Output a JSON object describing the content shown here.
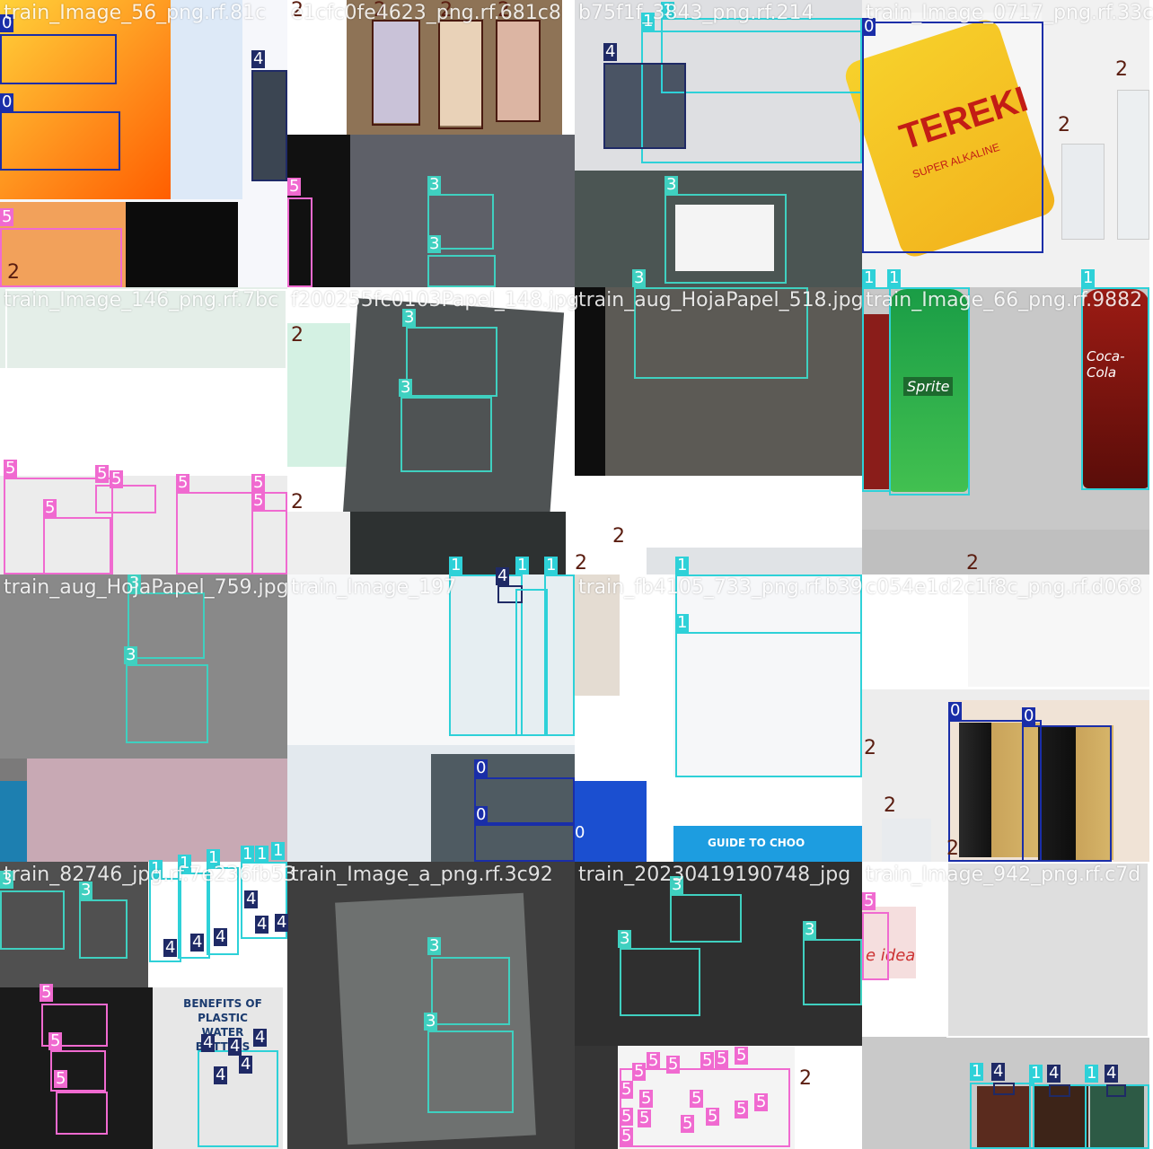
{
  "mosaic": {
    "tiles": [
      {
        "filename": "train_Image_56_png.rf.81c"
      },
      {
        "filename": "e1cfc0fe4623_png.rf.681c8"
      },
      {
        "filename": "b75f1f_3843_png.rf.214"
      },
      {
        "filename": "train_Image_0717_png.rf.33c"
      },
      {
        "filename": "train_Image_146_png.rf.7bc"
      },
      {
        "filename": "f200255fc0103Papel_148.jpg"
      },
      {
        "filename": "train_aug_HojaPapel_518.jpg"
      },
      {
        "filename": "train_Image_66_png.rf.9882"
      },
      {
        "filename": "train_aug_HojaPapel_759.jpg"
      },
      {
        "filename": "train_Image_197"
      },
      {
        "filename": "train_fb4105_733_png.rf.b39"
      },
      {
        "filename": "c054e1d2c1f8c_png.rf.d068"
      },
      {
        "filename": "train_82746_jpg.rf.7e236fb53"
      },
      {
        "filename": "train_Image_a_png.rf.3c92"
      },
      {
        "filename": "train_20230419190748_jpg"
      },
      {
        "filename": "train_Image_942_png.rf.c7d"
      }
    ]
  },
  "classes": {
    "0": {
      "label": "0",
      "color": "#1a2ea8"
    },
    "1": {
      "label": "1",
      "color": "#2ed1d8"
    },
    "2": {
      "label": "2",
      "color": "#4a1a10"
    },
    "3": {
      "label": "3",
      "color": "#3fd0c0"
    },
    "4": {
      "label": "4",
      "color": "#1f2a66"
    },
    "5": {
      "label": "5",
      "color": "#f06ad0"
    }
  },
  "product_texts": {
    "battery_brand": "TEREKI",
    "battery_sub": "SUPER ALKALINE",
    "sprite": "Sprite",
    "coca_cola": "Coca-Cola",
    "benefits_sign": "BENEFITS OF PLASTIC WATER BOTTLES",
    "guide_sign": "GUIDE TO CHOO",
    "idea_text": "e idea"
  }
}
